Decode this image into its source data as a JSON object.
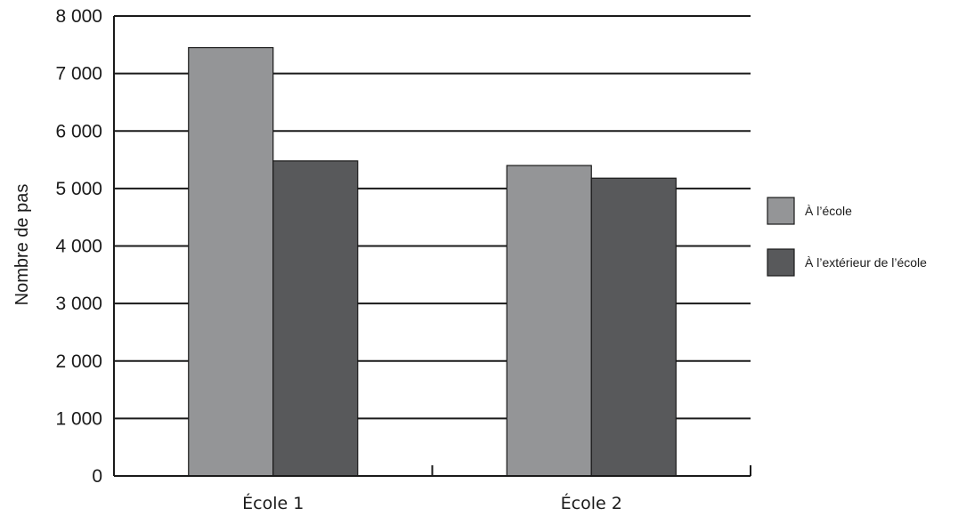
{
  "chart_data": {
    "type": "bar",
    "title": "",
    "xlabel": "",
    "ylabel": "Nombre de pas",
    "ylim": [
      0,
      8000
    ],
    "yticks": [
      0,
      1000,
      2000,
      3000,
      4000,
      5000,
      6000,
      7000,
      8000
    ],
    "ytick_labels": [
      "0",
      "1 000",
      "2 000",
      "3 000",
      "4 000",
      "5 000",
      "6 000",
      "7 000",
      "8 000"
    ],
    "categories": [
      "École 1",
      "École 2"
    ],
    "series": [
      {
        "name": "À l’école",
        "values": [
          7450,
          5400
        ],
        "color": "#949597"
      },
      {
        "name": "À l’extérieur de l’école",
        "values": [
          5480,
          5180
        ],
        "color": "#58595b"
      }
    ],
    "grid": true,
    "legend": "right"
  }
}
